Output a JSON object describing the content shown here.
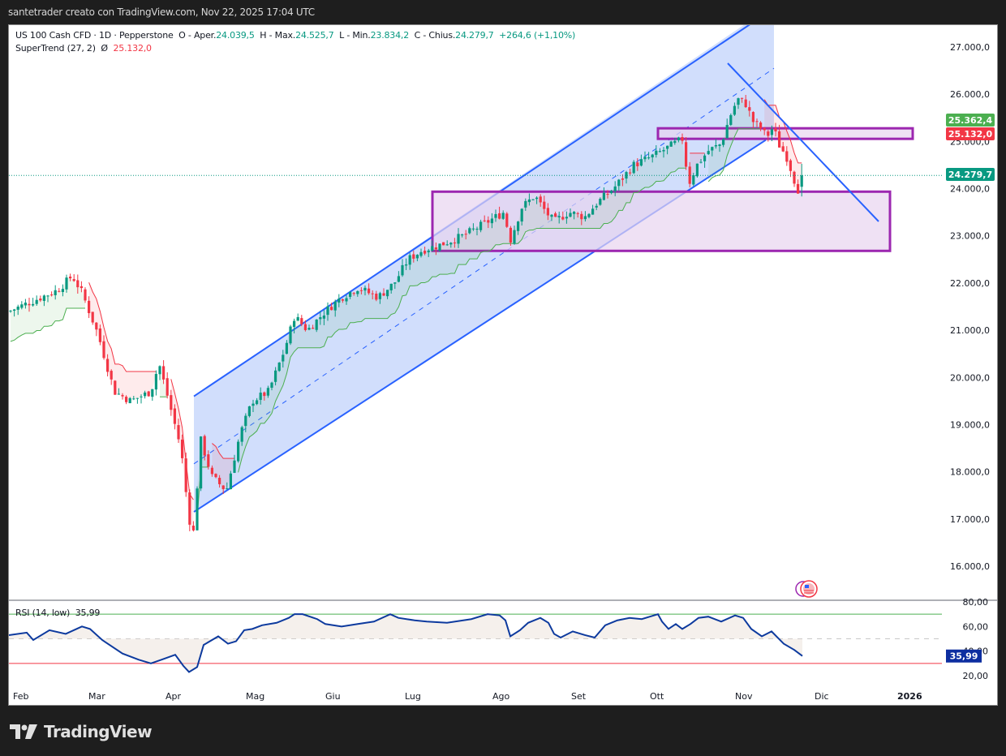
{
  "header": {
    "attribution": "santetrader creato con TradingView.com, Nov 22, 2025 17:04 UTC"
  },
  "legend": {
    "symbol": "US 100 Cash CFD · 1D · Pepperstone",
    "open_label": "O - Aper.",
    "open": "24.039,5",
    "high_label": "H - Max.",
    "high": "24.525,7",
    "low_label": "L - Min.",
    "low": "23.834,2",
    "close_label": "C - Chius.",
    "close": "24.279,7",
    "change": "+264,6 (+1,10%)",
    "indicator": "SuperTrend (27, 2)",
    "indicator_icon": "Ø",
    "indicator_value": "25.132,0"
  },
  "rsi_legend": {
    "label": "RSI (14, low)",
    "value": "35,99"
  },
  "footer": {
    "brand": "TradingView"
  },
  "colors": {
    "up": "#089981",
    "down": "#f23645",
    "channel_line": "#2962ff",
    "channel_fill": "#c9d8fb",
    "zone_border": "#9c27b0",
    "zone_fill": "#e8d4ef",
    "supertrend_up": "#4caf50",
    "supertrend_down": "#f23645",
    "rsi_line": "#0d3a9e",
    "rsi_upper": "#4caf50",
    "rsi_lower": "#f23645",
    "last_price": "#089981",
    "rsi_badge": "#0d2ea0"
  },
  "chart_data": [
    {
      "type": "candlestick",
      "title": "US 100 Cash CFD · 1D · Pepperstone",
      "x_ticks": [
        "Feb",
        "Mar",
        "Apr",
        "Mag",
        "Giu",
        "Lug",
        "Ago",
        "Set",
        "Ott",
        "Nov",
        "Dic",
        "2026"
      ],
      "y_ticks": [
        "27.000,0",
        "26.000,0",
        "25.000,0",
        "24.000,0",
        "23.000,0",
        "22.000,0",
        "21.000,0",
        "20.000,0",
        "19.000,0",
        "18.000,0",
        "17.000,0",
        "16.000,0"
      ],
      "ylim": [
        15800,
        27300
      ],
      "price_badges": [
        {
          "label": "25.362,4",
          "value": 25362.4,
          "color": "#4caf50"
        },
        {
          "label": "25.132,0",
          "value": 25132.0,
          "color": "#f23645"
        },
        {
          "label": "24.279,7",
          "value": 24279.7,
          "color": "#089981"
        }
      ],
      "last_price": 24279.7,
      "ohlc_summary": {
        "open": 24039.5,
        "high": 24525.7,
        "low": 23834.2,
        "close": 24279.7,
        "change": 264.6,
        "change_pct": 1.1
      },
      "monthly_path": [
        {
          "month": "Feb",
          "approx_close": 21400
        },
        {
          "month": "Mar",
          "approx_close": 19600
        },
        {
          "month": "Apr",
          "approx_close": 17400
        },
        {
          "month": "Mag",
          "approx_close": 21200
        },
        {
          "month": "Giu",
          "approx_close": 21800
        },
        {
          "month": "Lug",
          "approx_close": 23100
        },
        {
          "month": "Ago",
          "approx_close": 23500
        },
        {
          "month": "Set",
          "approx_close": 23800
        },
        {
          "month": "Ott",
          "approx_close": 24900
        },
        {
          "month": "Nov",
          "approx_close": 25600
        },
        {
          "month": "Nov-22",
          "approx_close": 24280
        }
      ],
      "drawings": [
        {
          "kind": "parallel_channel",
          "from": "Apr",
          "to": "Nov",
          "upper_start": 19600,
          "lower_start": 17150,
          "upper_end": 27300,
          "lower_end": 25100
        },
        {
          "kind": "trendline",
          "from": "late Ott",
          "start": 25650,
          "to": "Dic",
          "end": 23250
        },
        {
          "kind": "zone",
          "label": "resistance",
          "top": 25330,
          "bottom": 25100
        },
        {
          "kind": "zone",
          "label": "support",
          "top": 23970,
          "bottom": 22720
        }
      ],
      "supertrend": {
        "period": 27,
        "multiplier": 2,
        "value": 25132.0
      }
    },
    {
      "type": "line",
      "title": "RSI (14, low)",
      "y_ticks": [
        "80,00",
        "60,00",
        "40,00",
        "20,00"
      ],
      "ylim": [
        15,
        82
      ],
      "levels": {
        "upper": 70,
        "middle": 50,
        "lower": 30
      },
      "current": 35.99,
      "monthly_values": [
        {
          "month": "Feb",
          "value": 52
        },
        {
          "month": "Mar",
          "value": 34
        },
        {
          "month": "Apr",
          "value": 26
        },
        {
          "month": "Mag",
          "value": 63
        },
        {
          "month": "Giu",
          "value": 66
        },
        {
          "month": "Lug",
          "value": 67
        },
        {
          "month": "Ago",
          "value": 52
        },
        {
          "month": "Set",
          "value": 58
        },
        {
          "month": "Ott",
          "value": 68
        },
        {
          "month": "Nov",
          "value": 58
        },
        {
          "month": "Nov-22",
          "value": 35.99
        }
      ]
    }
  ]
}
